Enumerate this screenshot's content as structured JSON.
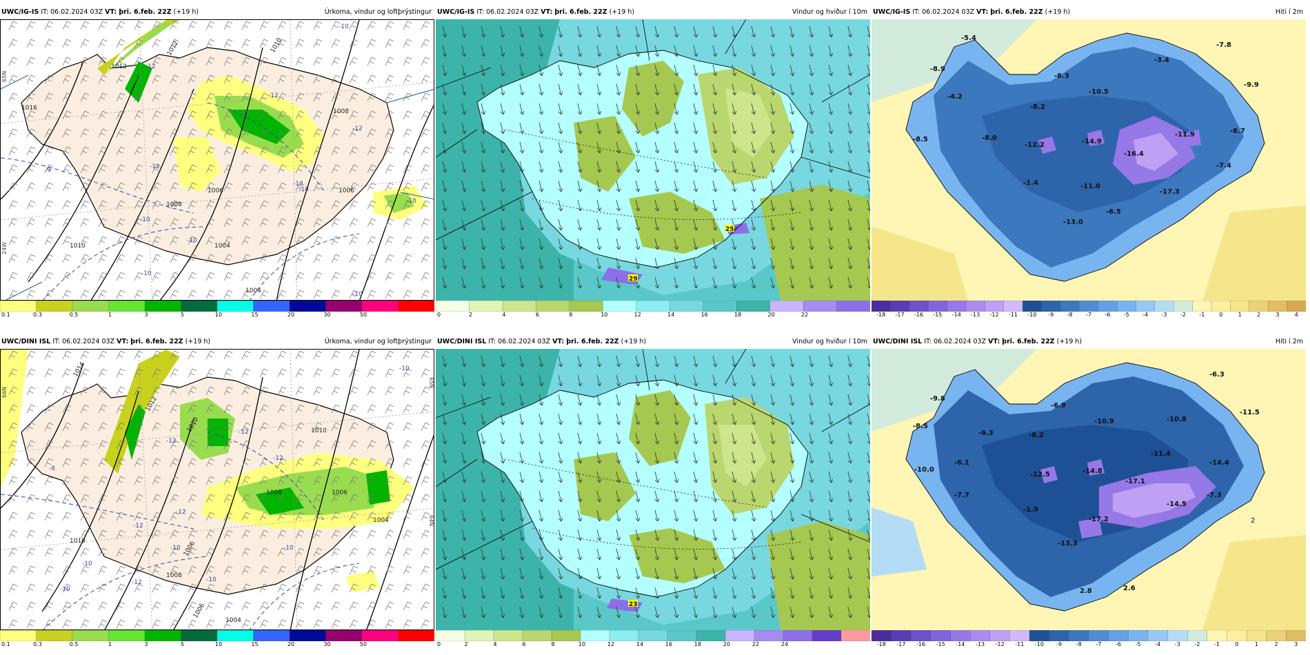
{
  "panels": [
    {
      "model": "UWC/IG-IS",
      "it": "IT: 06.02.2024 03Z",
      "vt_label": "VT:",
      "vt": "þri. 6.feb. 22Z",
      "lead": "(+19 h)",
      "title": "Úrkoma, vindur og loftþrýstingur",
      "ticks": [
        "0.1",
        "0.3",
        "0.5",
        "1",
        "3",
        "5",
        "10",
        "15",
        "20",
        "30",
        "50"
      ]
    },
    {
      "model": "UWC/IG-IS",
      "it": "IT: 06.02.2024 03Z",
      "vt_label": "VT:",
      "vt": "þri. 6.feb. 22Z",
      "lead": "(+19 h)",
      "title": "Vindur og hviður í 10m",
      "ticks": [
        "0",
        "2",
        "4",
        "6",
        "8",
        "10",
        "12",
        "14",
        "16",
        "18",
        "20",
        "22"
      ]
    },
    {
      "model": "UWC/IG-IS",
      "it": "IT: 06.02.2024 03Z",
      "vt_label": "VT:",
      "vt": "þri. 6.feb. 22Z",
      "lead": "(+19 h)",
      "title": "Hiti í 2m",
      "ticks": [
        "-18",
        "-17",
        "-16",
        "-15",
        "-14",
        "-13",
        "-12",
        "-11",
        "-10",
        "-9",
        "-8",
        "-7",
        "-6",
        "-5",
        "-4",
        "-3",
        "-2",
        "-1",
        "0",
        "1",
        "2",
        "3",
        "4"
      ]
    },
    {
      "model": "UWC/DINI ISL",
      "it": "IT: 06.02.2024 03Z",
      "vt_label": "VT:",
      "vt": "þri. 6.feb. 22Z",
      "lead": "(+19 h)",
      "title": "Úrkoma, vindur og loftþrýstingur",
      "ticks": [
        "0.1",
        "0.3",
        "0.5",
        "1",
        "3",
        "5",
        "10",
        "15",
        "20",
        "30",
        "50"
      ]
    },
    {
      "model": "UWC/DINI ISL",
      "it": "IT: 06.02.2024 03Z",
      "vt_label": "VT:",
      "vt": "þri. 6.feb. 22Z",
      "lead": "(+19 h)",
      "title": "Vindur og hviður í 10m",
      "ticks": [
        "0",
        "2",
        "4",
        "6",
        "8",
        "10",
        "12",
        "14",
        "16",
        "18",
        "20",
        "22",
        "24"
      ]
    },
    {
      "model": "UWC/DINI ISL",
      "it": "IT: 06.02.2024 03Z",
      "vt_label": "VT:",
      "vt": "þri. 6.feb. 22Z",
      "lead": "(+19 h)",
      "title": "Hiti í 2m",
      "ticks": [
        "-18",
        "-17",
        "-16",
        "-15",
        "-14",
        "-13",
        "-12",
        "-11",
        "-10",
        "-9",
        "-8",
        "-7",
        "-6",
        "-5",
        "-4",
        "-3",
        "-2",
        "-1",
        "0",
        "1",
        "2",
        "3"
      ]
    }
  ],
  "temp_labels_top": [
    "-5.4",
    "-7.8",
    "-3.4",
    "-8.9",
    "-6.3",
    "-10.5",
    "-9.9",
    "-4.2",
    "-8.2",
    "-11.9",
    "-8.7",
    "-8.5",
    "-8.0",
    "-12.2",
    "-14.9",
    "-16.4",
    "-7.4",
    "-1.4",
    "-11.0",
    "-17.3",
    "-6.5",
    "-13.0"
  ],
  "temp_labels_bottom": [
    "-6.3",
    "-9.8",
    "-6.9",
    "-10.9",
    "-10.8",
    "-11.5",
    "-8.5",
    "-6.3",
    "-8.2",
    "-11.4",
    "-6.1",
    "-14.4",
    "-10.0",
    "-12.5",
    "-14.8",
    "-17.1",
    "-7.7",
    "-7.3",
    "-14.5",
    "-1.9",
    "-17.2",
    "-13.3",
    "2",
    "2.8",
    "2.6"
  ],
  "pressure_labels_top": [
    "1012",
    "1010",
    "1008",
    "1006",
    "1004",
    "1012",
    "1008",
    "1006",
    "1004",
    "1010",
    "1016"
  ],
  "isotherm_labels_top": [
    "-12",
    "-12",
    "-12",
    "-12",
    "-12",
    "-9",
    "-10",
    "-10",
    "-10",
    "-10",
    "-10",
    "-10",
    "-10"
  ],
  "pressure_labels_bottom": [
    "1014",
    "1012",
    "1010",
    "1008",
    "1006",
    "1004",
    "1006",
    "1008",
    "1010",
    "1006",
    "1004",
    "1010"
  ],
  "isotherm_labels_bottom": [
    "-10",
    "-12",
    "-12",
    "-12",
    "-12",
    "-12",
    "-10",
    "-10",
    "-10",
    "-10",
    "-12",
    "-10",
    "-8"
  ],
  "gust_labels_top": [
    "25",
    "29"
  ],
  "gust_labels_bottom": [
    "23"
  ],
  "lat_labels": [
    "65N",
    "66N",
    "65N",
    "64N"
  ],
  "lon_labels": [
    "24W"
  ],
  "colors": {
    "precip": [
      "#ffff7f",
      "#c8d21e",
      "#9adc50",
      "#64e632",
      "#00b400",
      "#006b3c",
      "#00ffe6",
      "#3264ff",
      "#000a96",
      "#96006e",
      "#ff007f",
      "#ff0000"
    ],
    "wind": [
      "#f6ffe6",
      "#e1f5b9",
      "#cde68c",
      "#b9d76e",
      "#a5c850",
      "#b4ffff",
      "#8ceef0",
      "#78d8e0",
      "#5ac8c8",
      "#3cb4aa",
      "#c8b4ff",
      "#a58cf0",
      "#8c6ee6",
      "#643cc8",
      "#ff9aa0"
    ],
    "temp": [
      "#4b2d9b",
      "#5a3cb4",
      "#6e50c8",
      "#8264dc",
      "#9678e6",
      "#aa8cf0",
      "#bea0f5",
      "#d2b9fa",
      "#1e5096",
      "#2d64aa",
      "#3c78be",
      "#508cd2",
      "#64a0e6",
      "#78b4f0",
      "#96c8f5",
      "#b4dcf5",
      "#d2ebdc",
      "#fff5b4",
      "#fff0a0",
      "#f5e68c",
      "#ebd278",
      "#e1be64",
      "#d7aa50"
    ]
  }
}
